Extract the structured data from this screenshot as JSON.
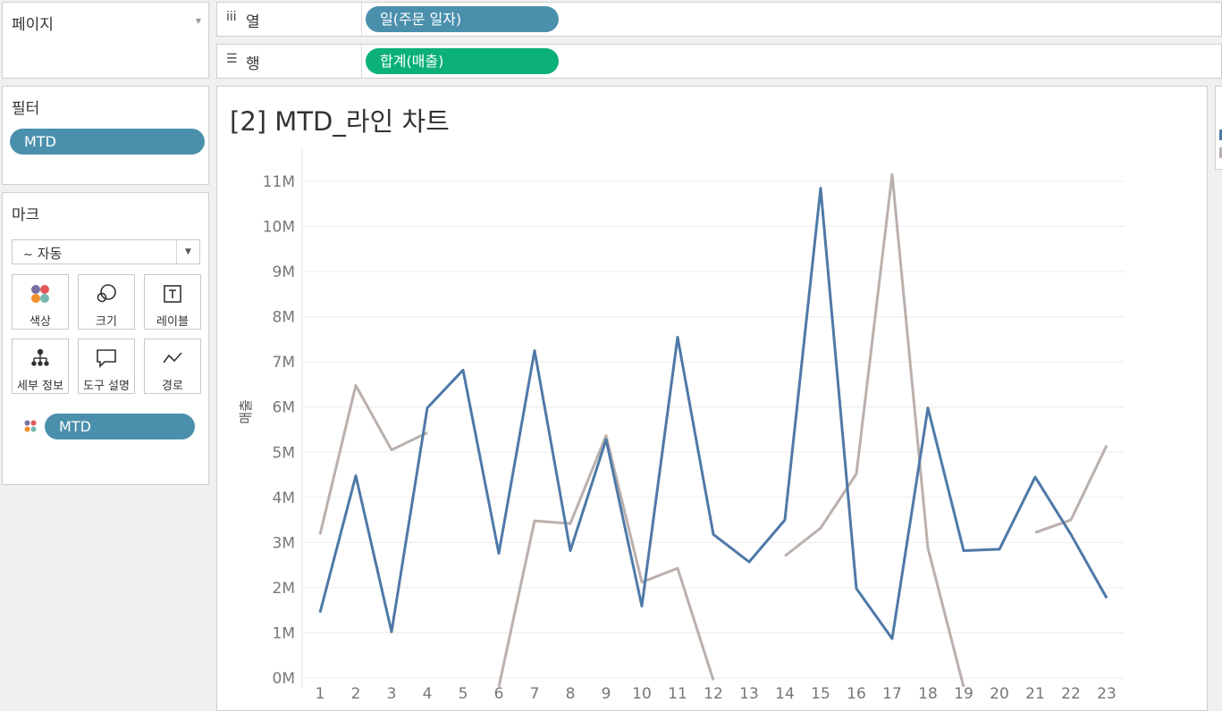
{
  "pages_panel": {
    "title": "페이지"
  },
  "filters_panel": {
    "title": "필터",
    "pill": "MTD"
  },
  "marks_panel": {
    "title": "마크",
    "mark_type": "자동",
    "buttons": [
      "색상",
      "크기",
      "레이블",
      "세부 정보",
      "도구 설명",
      "경로"
    ],
    "color_pill": "MTD"
  },
  "shelves": {
    "columns_label": "열",
    "columns_pill": "일(주문 일자)",
    "rows_label": "행",
    "rows_pill": "합계(매출)"
  },
  "view": {
    "title": "[2] MTD_라인 차트"
  },
  "colors": {
    "series_blue": "#4e79a7",
    "series_gray": "#bab0ac",
    "pill_blue": "#4a90ad",
    "pill_green": "#0bb07b"
  },
  "chart_data": {
    "type": "line",
    "x": [
      1,
      2,
      3,
      4,
      5,
      6,
      7,
      8,
      9,
      10,
      11,
      12,
      13,
      14,
      15,
      16,
      17,
      18,
      19,
      20,
      21,
      22,
      23
    ],
    "ylabel": "매출",
    "ylim": [
      -0.2,
      11.5
    ],
    "y_ticks": [
      "0M",
      "1M",
      "2M",
      "3M",
      "4M",
      "5M",
      "6M",
      "7M",
      "8M",
      "9M",
      "10M",
      "11M"
    ],
    "grid": true,
    "series": [
      {
        "values": [
          1.45,
          4.48,
          1.02,
          5.98,
          6.82,
          2.76,
          7.25,
          2.82,
          5.28,
          1.59,
          7.55,
          3.18,
          2.57,
          3.5,
          10.85,
          1.98,
          0.87,
          5.98,
          2.82,
          2.85,
          4.45,
          3.18,
          1.77
        ]
      },
      {
        "values": [
          3.18,
          6.48,
          5.05,
          5.43,
          null,
          -0.2,
          3.48,
          3.42,
          5.37,
          2.12,
          2.43,
          -0.05,
          null,
          2.7,
          3.32,
          4.52,
          11.15,
          2.88,
          -0.2,
          null,
          3.22,
          3.5,
          5.15
        ]
      }
    ]
  }
}
